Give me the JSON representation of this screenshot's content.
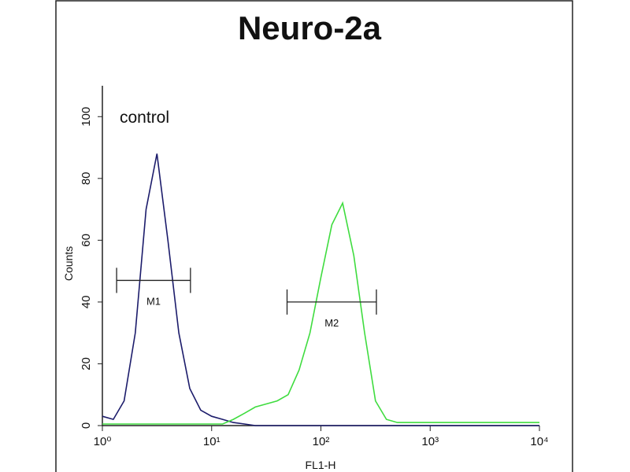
{
  "chart_data": {
    "type": "line",
    "title": "Neuro-2a",
    "x_label": "FL1-H",
    "y_label": "Counts",
    "annotation": "control",
    "log_x": true,
    "x": [
      1,
      1.26,
      1.58,
      2,
      2.51,
      3.16,
      3.98,
      5.01,
      6.31,
      7.94,
      10,
      12.6,
      15.8,
      20,
      25.1,
      31.6,
      39.8,
      50.1,
      63.1,
      79.4,
      100,
      126,
      158,
      200,
      251,
      316,
      398,
      501,
      631,
      794,
      1000,
      1260,
      1580,
      2000,
      2510,
      3160,
      3980,
      5010,
      6310,
      7940,
      10000
    ],
    "series": [
      {
        "color": "#1c1c6b",
        "values": [
          3,
          2,
          8,
          30,
          70,
          88,
          60,
          30,
          12,
          5,
          3,
          2,
          1,
          0.5,
          0,
          0,
          0,
          0,
          0,
          0,
          0,
          0,
          0,
          0,
          0,
          0,
          0,
          0,
          0,
          0,
          0,
          0,
          0,
          0,
          0,
          0,
          0,
          0,
          0,
          0,
          0
        ]
      },
      {
        "color": "#3fdc3f",
        "values": [
          0.5,
          0.5,
          0.5,
          0.5,
          0.5,
          0.5,
          0.5,
          0.5,
          0.5,
          0.5,
          0.5,
          0.5,
          2,
          4,
          6,
          7,
          8,
          10,
          18,
          30,
          48,
          65,
          72,
          55,
          30,
          8,
          2,
          1,
          1,
          1,
          1,
          1,
          1,
          1,
          1,
          1,
          1,
          1,
          1,
          1,
          1
        ]
      }
    ],
    "gates": [
      {
        "label": "M1",
        "range": [
          1.35,
          6.4
        ],
        "y": 47
      },
      {
        "label": "M2",
        "range": [
          49,
          322
        ],
        "y": 40
      }
    ],
    "xlim": [
      1,
      10000
    ],
    "xticks": [
      {
        "value": 1,
        "label": "10⁰"
      },
      {
        "value": 10,
        "label": "10¹"
      },
      {
        "value": 100,
        "label": "10²"
      },
      {
        "value": 1000,
        "label": "10³"
      },
      {
        "value": 10000,
        "label": "10⁴"
      }
    ],
    "ylim": [
      0,
      110
    ],
    "yticks": [
      0,
      20,
      40,
      60,
      80,
      100
    ]
  }
}
